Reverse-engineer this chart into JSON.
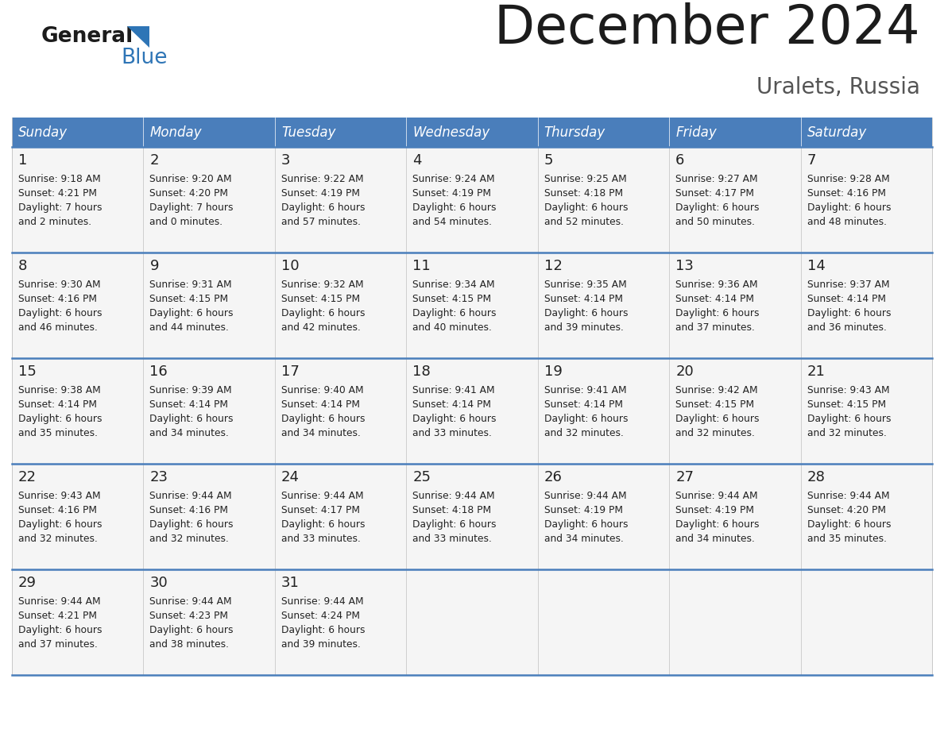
{
  "title": "December 2024",
  "subtitle": "Uralets, Russia",
  "header_color": "#4A7EBB",
  "header_text_color": "#FFFFFF",
  "background_color": "#FFFFFF",
  "cell_bg_color": "#F5F5F5",
  "grid_line_color": "#4A7EBB",
  "text_color": "#222222",
  "days_of_week": [
    "Sunday",
    "Monday",
    "Tuesday",
    "Wednesday",
    "Thursday",
    "Friday",
    "Saturday"
  ],
  "weeks": [
    [
      {
        "day": "1",
        "sunrise": "9:18 AM",
        "sunset": "4:21 PM",
        "daylight_h": "7 hours",
        "daylight_m": "and 2 minutes."
      },
      {
        "day": "2",
        "sunrise": "9:20 AM",
        "sunset": "4:20 PM",
        "daylight_h": "7 hours",
        "daylight_m": "and 0 minutes."
      },
      {
        "day": "3",
        "sunrise": "9:22 AM",
        "sunset": "4:19 PM",
        "daylight_h": "6 hours",
        "daylight_m": "and 57 minutes."
      },
      {
        "day": "4",
        "sunrise": "9:24 AM",
        "sunset": "4:19 PM",
        "daylight_h": "6 hours",
        "daylight_m": "and 54 minutes."
      },
      {
        "day": "5",
        "sunrise": "9:25 AM",
        "sunset": "4:18 PM",
        "daylight_h": "6 hours",
        "daylight_m": "and 52 minutes."
      },
      {
        "day": "6",
        "sunrise": "9:27 AM",
        "sunset": "4:17 PM",
        "daylight_h": "6 hours",
        "daylight_m": "and 50 minutes."
      },
      {
        "day": "7",
        "sunrise": "9:28 AM",
        "sunset": "4:16 PM",
        "daylight_h": "6 hours",
        "daylight_m": "and 48 minutes."
      }
    ],
    [
      {
        "day": "8",
        "sunrise": "9:30 AM",
        "sunset": "4:16 PM",
        "daylight_h": "6 hours",
        "daylight_m": "and 46 minutes."
      },
      {
        "day": "9",
        "sunrise": "9:31 AM",
        "sunset": "4:15 PM",
        "daylight_h": "6 hours",
        "daylight_m": "and 44 minutes."
      },
      {
        "day": "10",
        "sunrise": "9:32 AM",
        "sunset": "4:15 PM",
        "daylight_h": "6 hours",
        "daylight_m": "and 42 minutes."
      },
      {
        "day": "11",
        "sunrise": "9:34 AM",
        "sunset": "4:15 PM",
        "daylight_h": "6 hours",
        "daylight_m": "and 40 minutes."
      },
      {
        "day": "12",
        "sunrise": "9:35 AM",
        "sunset": "4:14 PM",
        "daylight_h": "6 hours",
        "daylight_m": "and 39 minutes."
      },
      {
        "day": "13",
        "sunrise": "9:36 AM",
        "sunset": "4:14 PM",
        "daylight_h": "6 hours",
        "daylight_m": "and 37 minutes."
      },
      {
        "day": "14",
        "sunrise": "9:37 AM",
        "sunset": "4:14 PM",
        "daylight_h": "6 hours",
        "daylight_m": "and 36 minutes."
      }
    ],
    [
      {
        "day": "15",
        "sunrise": "9:38 AM",
        "sunset": "4:14 PM",
        "daylight_h": "6 hours",
        "daylight_m": "and 35 minutes."
      },
      {
        "day": "16",
        "sunrise": "9:39 AM",
        "sunset": "4:14 PM",
        "daylight_h": "6 hours",
        "daylight_m": "and 34 minutes."
      },
      {
        "day": "17",
        "sunrise": "9:40 AM",
        "sunset": "4:14 PM",
        "daylight_h": "6 hours",
        "daylight_m": "and 34 minutes."
      },
      {
        "day": "18",
        "sunrise": "9:41 AM",
        "sunset": "4:14 PM",
        "daylight_h": "6 hours",
        "daylight_m": "and 33 minutes."
      },
      {
        "day": "19",
        "sunrise": "9:41 AM",
        "sunset": "4:14 PM",
        "daylight_h": "6 hours",
        "daylight_m": "and 32 minutes."
      },
      {
        "day": "20",
        "sunrise": "9:42 AM",
        "sunset": "4:15 PM",
        "daylight_h": "6 hours",
        "daylight_m": "and 32 minutes."
      },
      {
        "day": "21",
        "sunrise": "9:43 AM",
        "sunset": "4:15 PM",
        "daylight_h": "6 hours",
        "daylight_m": "and 32 minutes."
      }
    ],
    [
      {
        "day": "22",
        "sunrise": "9:43 AM",
        "sunset": "4:16 PM",
        "daylight_h": "6 hours",
        "daylight_m": "and 32 minutes."
      },
      {
        "day": "23",
        "sunrise": "9:44 AM",
        "sunset": "4:16 PM",
        "daylight_h": "6 hours",
        "daylight_m": "and 32 minutes."
      },
      {
        "day": "24",
        "sunrise": "9:44 AM",
        "sunset": "4:17 PM",
        "daylight_h": "6 hours",
        "daylight_m": "and 33 minutes."
      },
      {
        "day": "25",
        "sunrise": "9:44 AM",
        "sunset": "4:18 PM",
        "daylight_h": "6 hours",
        "daylight_m": "and 33 minutes."
      },
      {
        "day": "26",
        "sunrise": "9:44 AM",
        "sunset": "4:19 PM",
        "daylight_h": "6 hours",
        "daylight_m": "and 34 minutes."
      },
      {
        "day": "27",
        "sunrise": "9:44 AM",
        "sunset": "4:19 PM",
        "daylight_h": "6 hours",
        "daylight_m": "and 34 minutes."
      },
      {
        "day": "28",
        "sunrise": "9:44 AM",
        "sunset": "4:20 PM",
        "daylight_h": "6 hours",
        "daylight_m": "and 35 minutes."
      }
    ],
    [
      {
        "day": "29",
        "sunrise": "9:44 AM",
        "sunset": "4:21 PM",
        "daylight_h": "6 hours",
        "daylight_m": "and 37 minutes."
      },
      {
        "day": "30",
        "sunrise": "9:44 AM",
        "sunset": "4:23 PM",
        "daylight_h": "6 hours",
        "daylight_m": "and 38 minutes."
      },
      {
        "day": "31",
        "sunrise": "9:44 AM",
        "sunset": "4:24 PM",
        "daylight_h": "6 hours",
        "daylight_m": "and 39 minutes."
      },
      null,
      null,
      null,
      null
    ]
  ]
}
